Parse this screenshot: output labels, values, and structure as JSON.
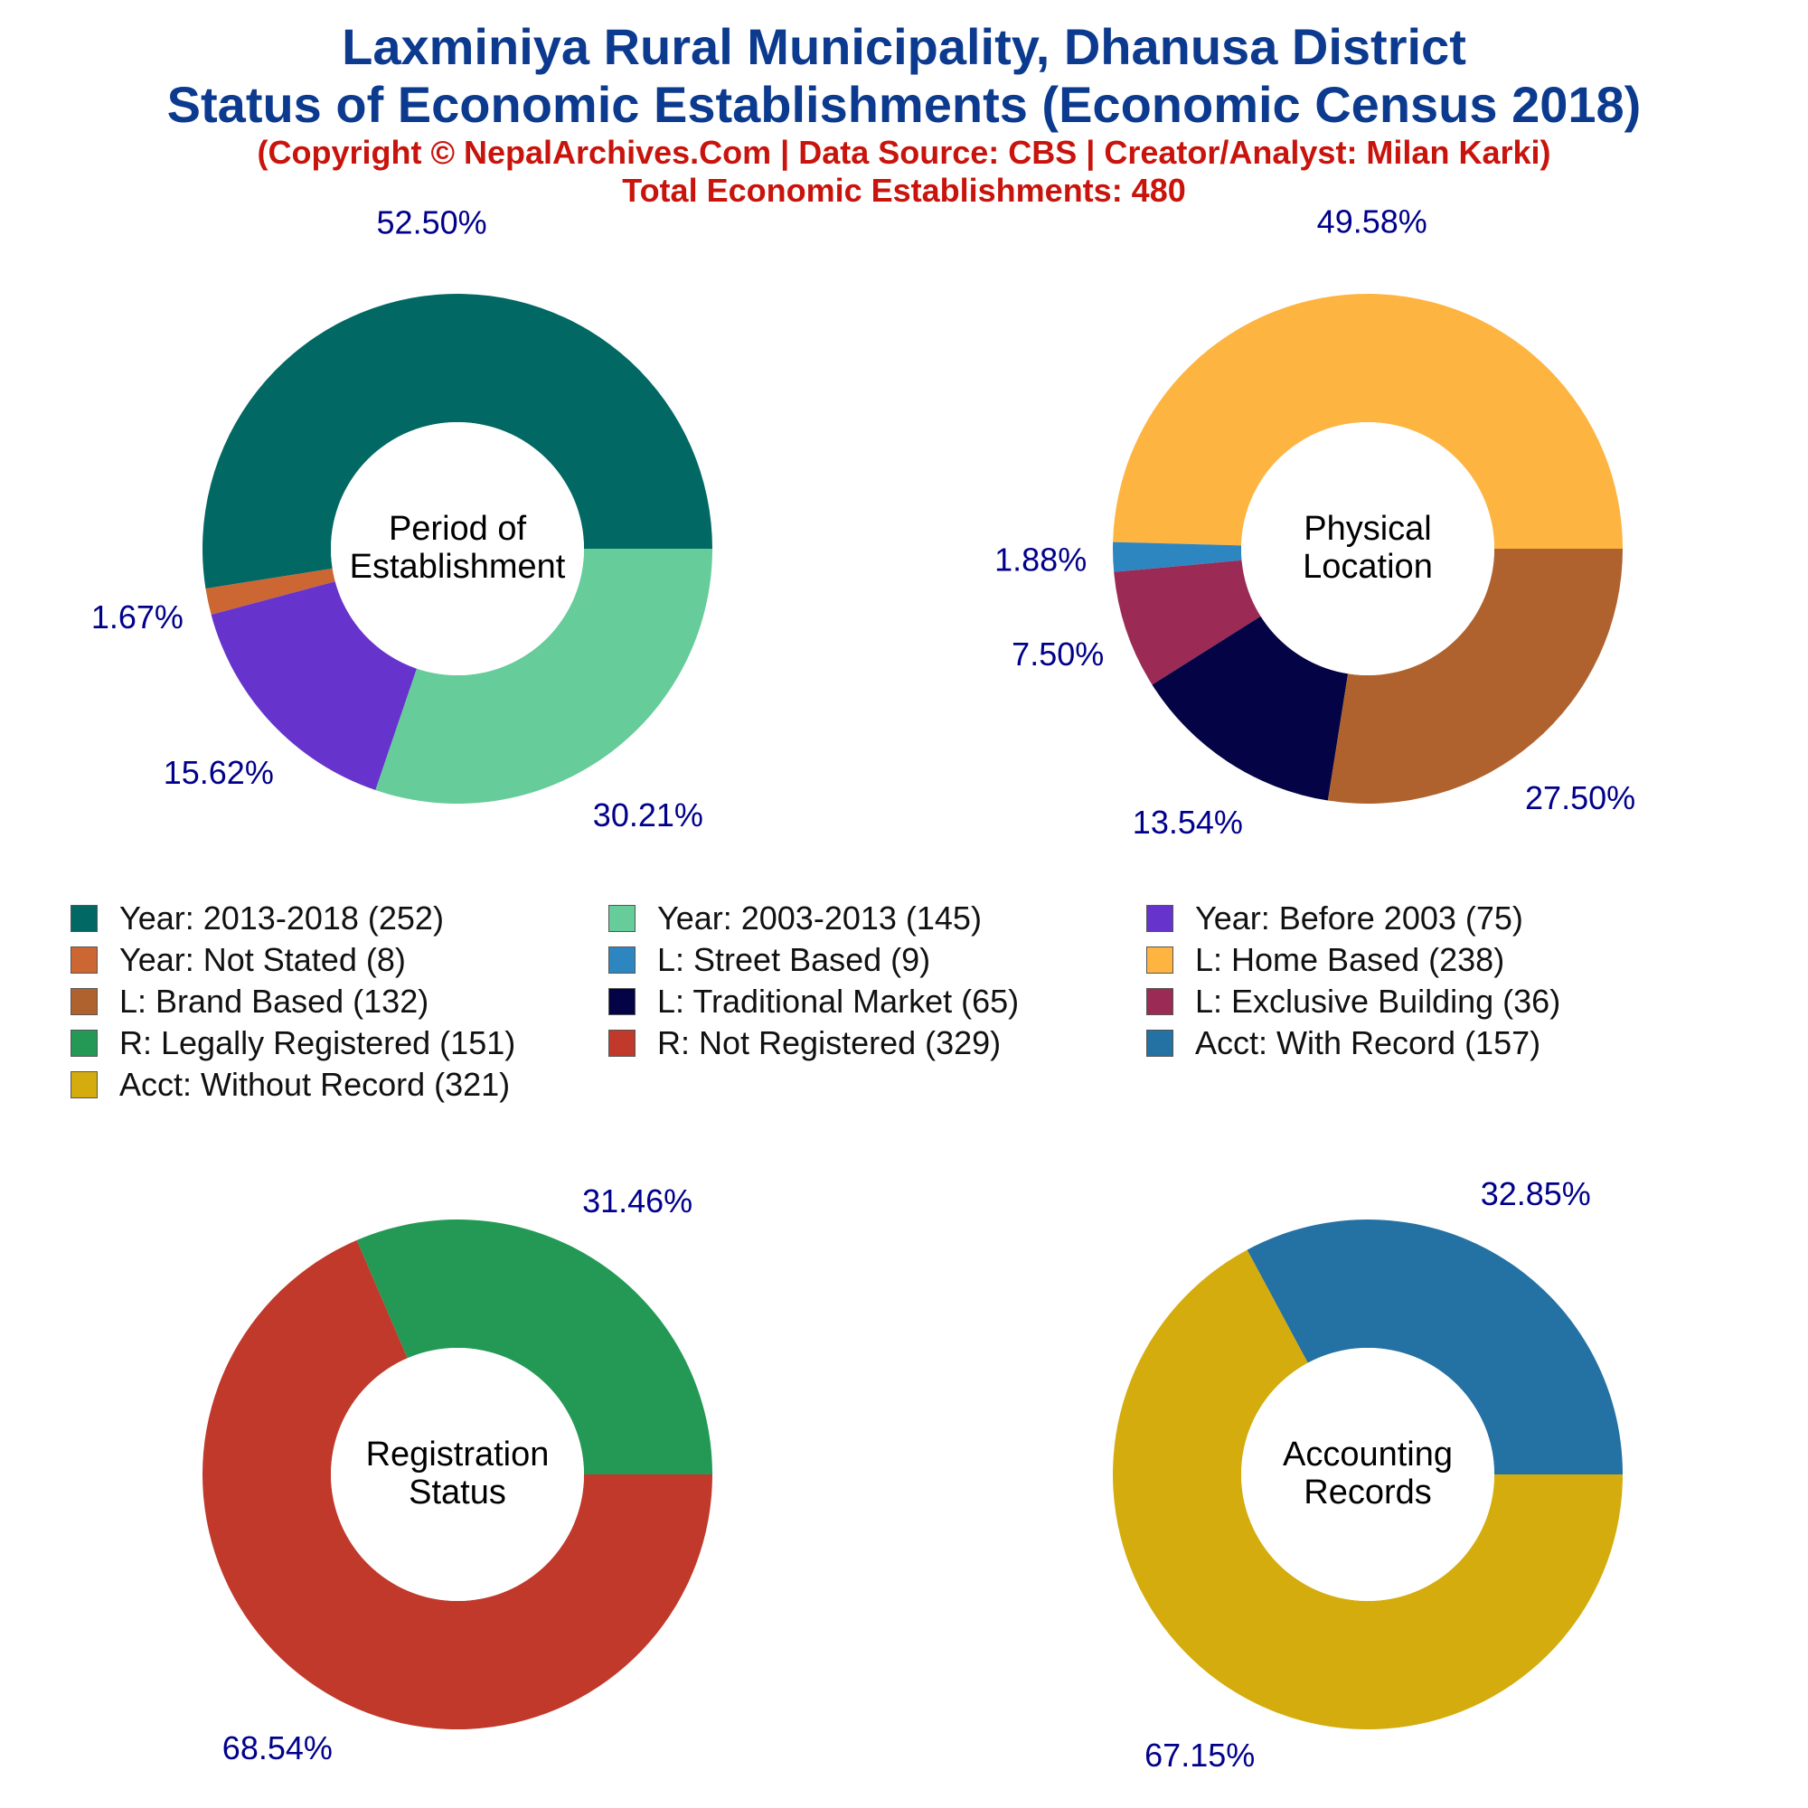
{
  "header": {
    "title_line1": "Laxminiya Rural Municipality, Dhanusa District",
    "title_line2": "Status of Economic Establishments (Economic Census 2018)",
    "copyright": "(Copyright © NepalArchives.Com | Data Source: CBS | Creator/Analyst: Milan Karki)",
    "total": "Total Economic Establishments: 480"
  },
  "legend": [
    {
      "label": "Year: 2013-2018 (252)",
      "color": "#016864"
    },
    {
      "label": "Year: 2003-2013 (145)",
      "color": "#66cc99"
    },
    {
      "label": "Year: Before 2003 (75)",
      "color": "#6633cc"
    },
    {
      "label": "Year: Not Stated (8)",
      "color": "#cc6633"
    },
    {
      "label": "L: Street Based (9)",
      "color": "#2e86c1"
    },
    {
      "label": "L: Home Based (238)",
      "color": "#fdb441"
    },
    {
      "label": "L: Brand Based (132)",
      "color": "#b0622e"
    },
    {
      "label": "L: Traditional Market (65)",
      "color": "#030345"
    },
    {
      "label": "L: Exclusive Building (36)",
      "color": "#9b2a55"
    },
    {
      "label": "R: Legally Registered (151)",
      "color": "#239955"
    },
    {
      "label": "R: Not Registered (329)",
      "color": "#c0392b"
    },
    {
      "label": "Acct: With Record (157)",
      "color": "#2471a3"
    },
    {
      "label": "Acct: Without Record (321)",
      "color": "#d4ac0d"
    }
  ],
  "chart_data": [
    {
      "type": "pie",
      "variant": "donut",
      "center_label": [
        "Period of",
        "Establishment"
      ],
      "slices": [
        {
          "name": "Year: 2013-2018",
          "value": 252,
          "percent_label": "52.50%",
          "color": "#016864"
        },
        {
          "name": "Year: Not Stated",
          "value": 8,
          "percent_label": "1.67%",
          "color": "#cc6633"
        },
        {
          "name": "Year: Before 2003",
          "value": 75,
          "percent_label": "15.62%",
          "color": "#6633cc"
        },
        {
          "name": "Year: 2003-2013",
          "value": 145,
          "percent_label": "30.21%",
          "color": "#66cc99"
        }
      ]
    },
    {
      "type": "pie",
      "variant": "donut",
      "center_label": [
        "Physical",
        "Location"
      ],
      "slices": [
        {
          "name": "L: Home Based",
          "value": 238,
          "percent_label": "49.58%",
          "color": "#fdb441"
        },
        {
          "name": "L: Street Based",
          "value": 9,
          "percent_label": "1.88%",
          "color": "#2e86c1"
        },
        {
          "name": "L: Exclusive Building",
          "value": 36,
          "percent_label": "7.50%",
          "color": "#9b2a55"
        },
        {
          "name": "L: Traditional Market",
          "value": 65,
          "percent_label": "13.54%",
          "color": "#030345"
        },
        {
          "name": "L: Brand Based",
          "value": 132,
          "percent_label": "27.50%",
          "color": "#b0622e"
        }
      ]
    },
    {
      "type": "pie",
      "variant": "donut",
      "center_label": [
        "Registration",
        "Status"
      ],
      "slices": [
        {
          "name": "R: Legally Registered",
          "value": 151,
          "percent_label": "31.46%",
          "color": "#239955"
        },
        {
          "name": "R: Not Registered",
          "value": 329,
          "percent_label": "68.54%",
          "color": "#c0392b"
        }
      ]
    },
    {
      "type": "pie",
      "variant": "donut",
      "center_label": [
        "Accounting",
        "Records"
      ],
      "slices": [
        {
          "name": "Acct: With Record",
          "value": 157,
          "percent_label": "32.85%",
          "color": "#2471a3"
        },
        {
          "name": "Acct: Without Record",
          "value": 321,
          "percent_label": "67.15%",
          "color": "#d4ac0d"
        }
      ]
    }
  ]
}
